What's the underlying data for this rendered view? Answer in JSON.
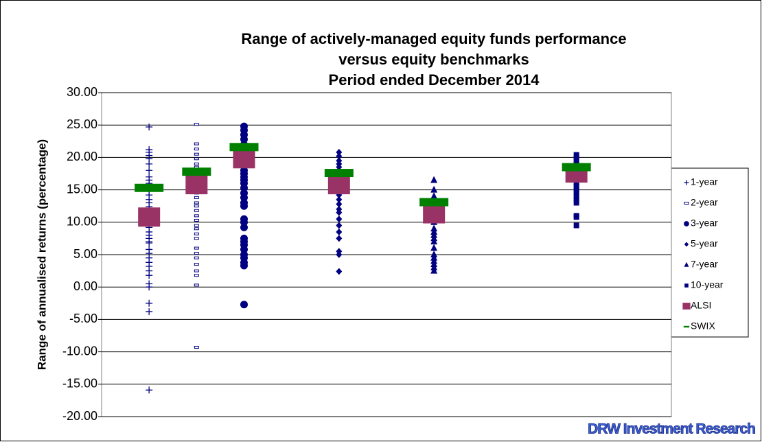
{
  "chart_data": {
    "type": "scatter",
    "title": [
      "Range of actively-managed equity funds performance",
      "versus equity benchmarks",
      "Period ended December 2014"
    ],
    "ylabel": "Range of annualised returns (percentage)",
    "annotation": "DRW Investment Research",
    "xlim": [
      0,
      12
    ],
    "ylim": [
      -20,
      30
    ],
    "yticks": [
      {
        "value": -20,
        "label": "-20.00"
      },
      {
        "value": -15,
        "label": "-15.00"
      },
      {
        "value": -10,
        "label": "-10.00"
      },
      {
        "value": -5,
        "label": "-5.00"
      },
      {
        "value": 0,
        "label": "0.00"
      },
      {
        "value": 5,
        "label": "5.00"
      },
      {
        "value": 10,
        "label": "10.00"
      },
      {
        "value": 15,
        "label": "15.00"
      },
      {
        "value": 20,
        "label": "20.00"
      },
      {
        "value": 25,
        "label": "25.00"
      },
      {
        "value": 30,
        "label": "30.00"
      }
    ],
    "grid": true,
    "legend": "right",
    "series": [
      {
        "name": "1-year",
        "color": "#000080",
        "marker": "plus",
        "x": [
          1,
          1,
          1,
          1,
          1,
          1,
          1,
          1,
          1,
          1,
          1,
          1,
          1,
          1,
          1,
          1,
          1,
          1,
          1,
          1,
          1,
          1,
          1,
          1,
          1,
          1,
          1,
          1,
          1,
          1,
          1,
          1,
          1,
          1,
          1,
          1,
          1,
          1,
          1
        ],
        "values": [
          24.7,
          21.2,
          20.8,
          20.3,
          19.8,
          19.0,
          18.0,
          17.0,
          16.5,
          16.0,
          15.5,
          14.8,
          14.2,
          13.5,
          13.0,
          12.4,
          12.0,
          11.5,
          11.0,
          10.3,
          9.8,
          9.2,
          8.5,
          8.0,
          7.5,
          7.0,
          6.8,
          5.8,
          5.2,
          4.5,
          3.8,
          3.2,
          2.5,
          1.8,
          0.5,
          0.0,
          -2.5,
          -3.8,
          -15.9
        ]
      },
      {
        "name": "2-year",
        "color": "#000080",
        "marker": "dash",
        "x": [
          2,
          2,
          2,
          2,
          2,
          2,
          2,
          2,
          2,
          2,
          2,
          2,
          2,
          2,
          2,
          2,
          2,
          2,
          2,
          2,
          2,
          2,
          2,
          2,
          2,
          2,
          2,
          2,
          2,
          2,
          2
        ],
        "values": [
          25.1,
          22.1,
          21.3,
          20.5,
          19.8,
          19.0,
          18.5,
          17.8,
          17.0,
          16.3,
          15.5,
          15.0,
          14.5,
          13.8,
          13.0,
          12.5,
          11.8,
          11.0,
          10.3,
          9.5,
          9.0,
          8.2,
          7.5,
          6.0,
          5.2,
          4.5,
          3.5,
          2.5,
          1.8,
          0.3,
          -9.3
        ]
      },
      {
        "name": "3-year",
        "color": "#000080",
        "marker": "circle",
        "x": [
          3,
          3,
          3,
          3,
          3,
          3,
          3,
          3,
          3,
          3,
          3,
          3,
          3,
          3,
          3,
          3,
          3,
          3,
          3,
          3,
          3,
          3,
          3,
          3,
          3,
          3,
          3,
          3,
          3,
          3,
          3,
          3
        ],
        "values": [
          24.8,
          24.2,
          23.5,
          22.8,
          22.0,
          21.5,
          20.8,
          20.0,
          19.5,
          18.8,
          18.0,
          17.5,
          17.0,
          16.5,
          16.0,
          15.3,
          14.5,
          13.8,
          13.0,
          12.5,
          10.5,
          10.0,
          9.2,
          7.5,
          7.0,
          6.5,
          5.8,
          5.0,
          4.5,
          3.8,
          3.3,
          -2.7
        ]
      },
      {
        "name": "5-year",
        "color": "#000080",
        "marker": "diamond",
        "x": [
          5,
          5,
          5,
          5,
          5,
          5,
          5,
          5,
          5,
          5,
          5,
          5,
          5,
          5,
          5,
          5,
          5,
          5,
          5,
          5,
          5,
          5
        ],
        "values": [
          20.8,
          20.2,
          19.5,
          19.0,
          18.5,
          17.8,
          17.0,
          16.2,
          15.5,
          15.0,
          14.2,
          13.5,
          12.8,
          12.0,
          11.5,
          10.5,
          9.5,
          8.5,
          7.5,
          5.5,
          5.0,
          2.4
        ]
      },
      {
        "name": "7-year",
        "color": "#000080",
        "marker": "triangle",
        "x": [
          7,
          7,
          7,
          7,
          7,
          7,
          7,
          7,
          7,
          7,
          7,
          7,
          7,
          7,
          7,
          7,
          7,
          7,
          7
        ],
        "values": [
          16.5,
          15.0,
          14.0,
          13.0,
          12.0,
          11.0,
          10.0,
          9.0,
          8.5,
          8.0,
          7.5,
          7.0,
          6.0,
          5.0,
          4.5,
          4.0,
          3.5,
          3.0,
          2.5
        ]
      },
      {
        "name": "10-year",
        "color": "#000080",
        "marker": "square",
        "x": [
          10,
          10,
          10,
          10,
          10,
          10,
          10,
          10,
          10,
          10,
          10,
          10,
          10,
          10,
          10,
          10,
          10,
          10,
          10
        ],
        "values": [
          20.4,
          20.0,
          19.5,
          19.0,
          18.5,
          18.0,
          17.5,
          17.0,
          16.5,
          16.0,
          15.5,
          15.0,
          14.5,
          14.0,
          13.5,
          13.0,
          11.0,
          10.8,
          9.5
        ]
      },
      {
        "name": "ALSI",
        "color": "#993366",
        "marker": "bigsquare",
        "x": [
          1,
          2,
          3,
          5,
          7,
          10
        ],
        "values": [
          10.8,
          15.8,
          19.8,
          15.8,
          11.3,
          17.6
        ]
      },
      {
        "name": "SWIX",
        "color": "#008000",
        "marker": "bar",
        "x": [
          1,
          2,
          3,
          5,
          7,
          10
        ],
        "values": [
          15.3,
          17.8,
          21.6,
          17.6,
          13.1,
          18.5
        ]
      }
    ]
  }
}
